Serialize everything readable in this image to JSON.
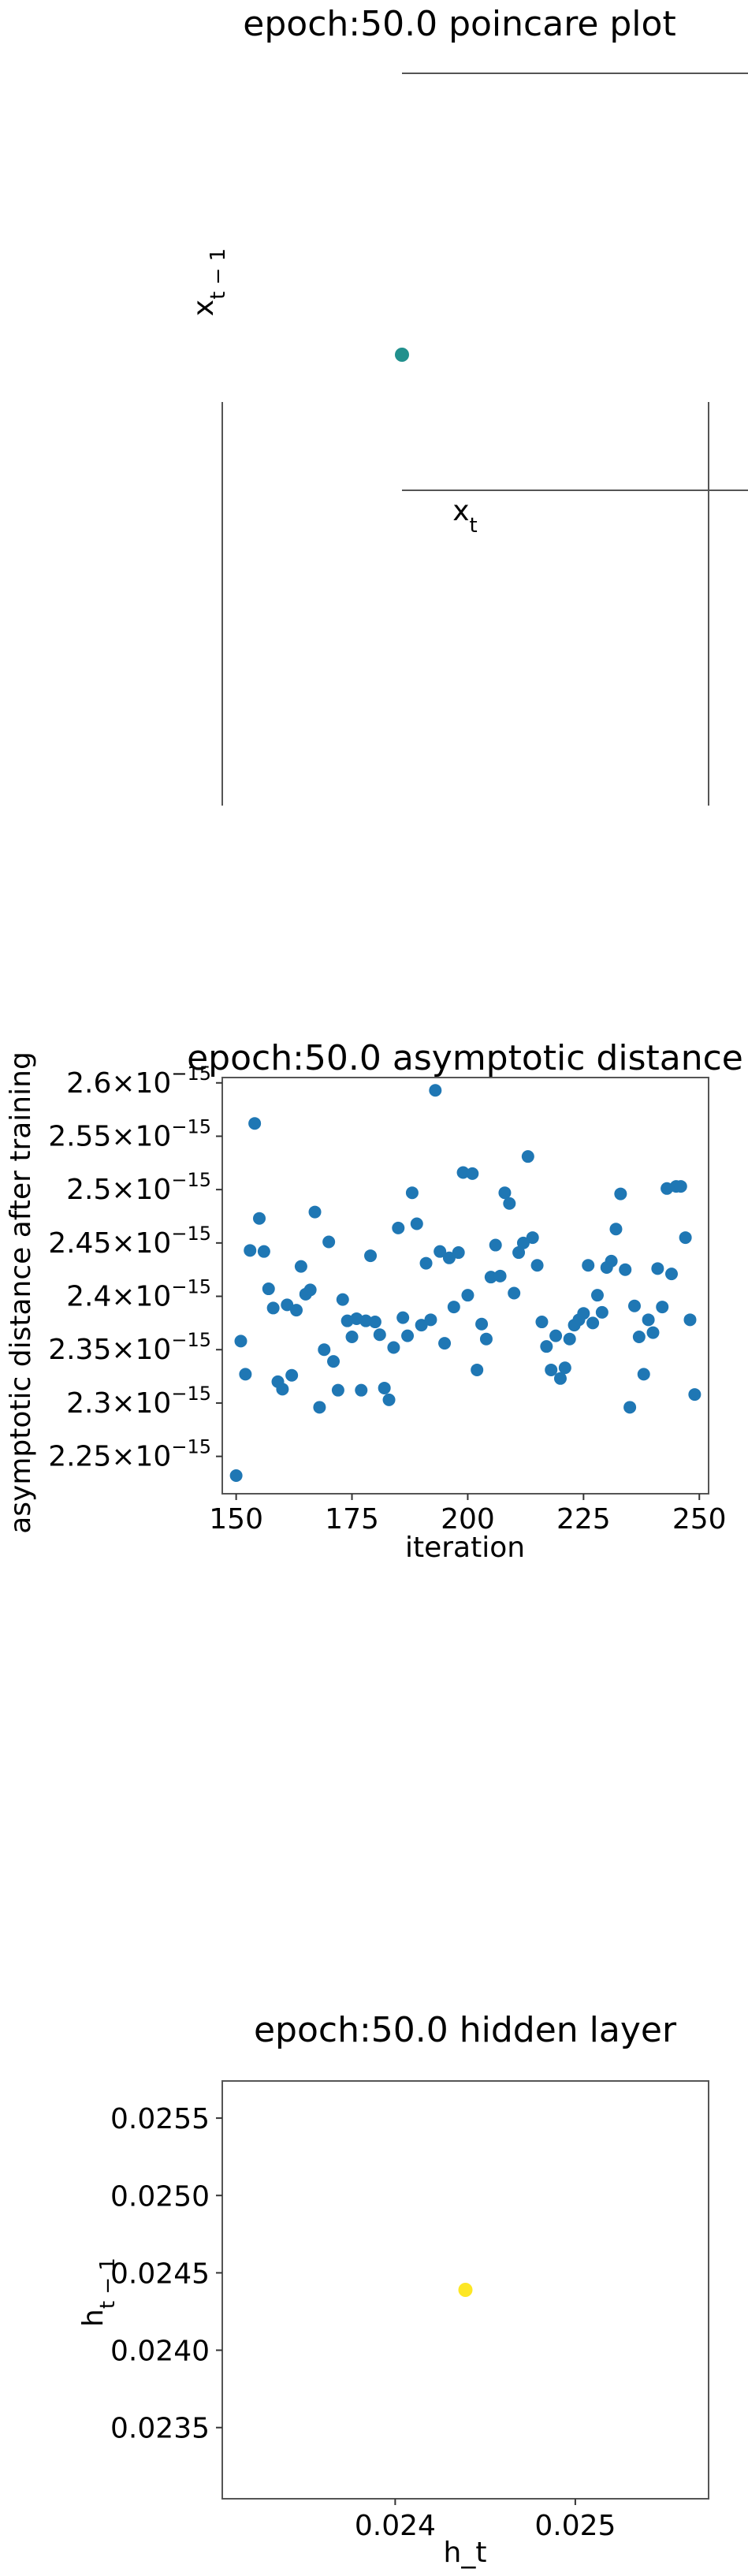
{
  "chart_data": [
    {
      "type": "scatter",
      "title": "epoch:50.0 poincare plot",
      "xlabel": "x_t",
      "ylabel": "x_{t-1}",
      "points": [
        {
          "x": 0,
          "y": 0
        }
      ],
      "point_color": "#21908d",
      "grid": false
    },
    {
      "type": "scatter",
      "title": "epoch:50.0 asymptotic distance",
      "xlabel": "iteration",
      "ylabel": "asymptotic distance after training",
      "xlim": [
        147,
        252
      ],
      "ylim": [
        2.215,
        2.605
      ],
      "y_scale_note": "×10^-15",
      "xticks": [
        150,
        175,
        200,
        225,
        250
      ],
      "yticks": [
        "2.25",
        "2.3",
        "2.35",
        "2.4",
        "2.45",
        "2.5",
        "2.55",
        "2.6"
      ],
      "y_tick_values": [
        2.25,
        2.3,
        2.35,
        2.4,
        2.45,
        2.5,
        2.55,
        2.6
      ],
      "point_color": "#1f77b4",
      "x": [
        150,
        151,
        152,
        153,
        154,
        155,
        156,
        157,
        158,
        159,
        160,
        161,
        162,
        163,
        164,
        165,
        166,
        167,
        168,
        169,
        170,
        171,
        172,
        173,
        174,
        175,
        176,
        177,
        178,
        179,
        180,
        181,
        182,
        183,
        184,
        185,
        186,
        187,
        188,
        189,
        190,
        191,
        192,
        193,
        194,
        195,
        196,
        197,
        198,
        199,
        200,
        201,
        202,
        203,
        204,
        205,
        206,
        207,
        208,
        209,
        210,
        211,
        212,
        213,
        214,
        215,
        216,
        217,
        218,
        219,
        220,
        221,
        222,
        223,
        224,
        225,
        226,
        227,
        228,
        229,
        230,
        231,
        232,
        233,
        234,
        235,
        236,
        237,
        238,
        239,
        240,
        241,
        242,
        243,
        244,
        245,
        246,
        247,
        248,
        249
      ],
      "y": [
        2.232,
        2.358,
        2.327,
        2.443,
        2.562,
        2.473,
        2.442,
        2.407,
        2.389,
        2.32,
        2.313,
        2.392,
        2.326,
        2.387,
        2.428,
        2.402,
        2.406,
        2.479,
        2.296,
        2.35,
        2.451,
        2.339,
        2.312,
        2.397,
        2.377,
        2.362,
        2.379,
        2.312,
        2.377,
        2.438,
        2.376,
        2.364,
        2.314,
        2.303,
        2.352,
        2.464,
        2.38,
        2.363,
        2.497,
        2.468,
        2.373,
        2.431,
        2.378,
        2.593,
        2.442,
        2.356,
        2.436,
        2.39,
        2.441,
        2.516,
        2.401,
        2.515,
        2.331,
        2.374,
        2.36,
        2.418,
        2.448,
        2.419,
        2.497,
        2.487,
        2.403,
        2.441,
        2.45,
        2.531,
        2.455,
        2.429,
        2.376,
        2.353,
        2.331,
        2.363,
        2.323,
        2.333,
        2.36,
        2.373,
        2.378,
        2.384,
        2.429,
        2.375,
        2.401,
        2.385,
        2.427,
        2.433,
        2.463,
        2.496,
        2.425,
        2.296,
        2.391,
        2.362,
        2.327,
        2.378,
        2.366,
        2.426,
        2.39,
        2.501,
        2.421,
        2.503,
        2.503,
        2.455,
        2.378,
        2.308
      ]
    },
    {
      "type": "scatter",
      "title": "epoch:50.0 hidden layer",
      "xlabel": "h_t",
      "ylabel": "h_{t-1}",
      "xlim": [
        0.02304,
        0.02574
      ],
      "ylim": [
        0.02304,
        0.02574
      ],
      "xticks": [
        "0.024",
        "0.025"
      ],
      "x_tick_values": [
        0.024,
        0.025
      ],
      "yticks": [
        "0.0235",
        "0.0240",
        "0.0245",
        "0.0250",
        "0.0255"
      ],
      "y_tick_values": [
        0.0235,
        0.024,
        0.0245,
        0.025,
        0.0255
      ],
      "points": [
        {
          "x": 0.02439,
          "y": 0.02439
        }
      ],
      "point_color": "#fde725",
      "grid": false
    }
  ]
}
